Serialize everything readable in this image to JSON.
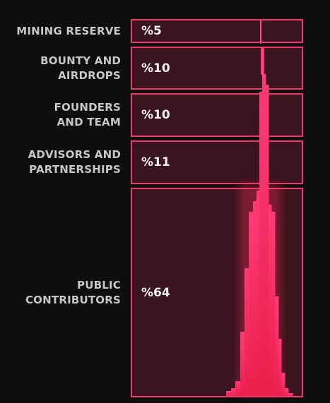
{
  "chart_data": {
    "type": "bar",
    "title": "",
    "categories": [
      [
        "MINING RESERVE"
      ],
      [
        "BOUNTY AND",
        "AIRDROPS"
      ],
      [
        "FOUNDERS",
        "AND TEAM"
      ],
      [
        "ADVISORS AND",
        "PARTNERSHIPS"
      ],
      [
        "PUBLIC",
        "CONTRIBUTORS"
      ]
    ],
    "values": [
      5,
      10,
      10,
      11,
      64
    ],
    "value_labels": [
      "%5",
      "%10",
      "%10",
      "%11",
      "%64"
    ],
    "colors": {
      "background": "#0e0e0e",
      "box_fill": "#3a141e",
      "box_border": "#f0386a",
      "peak_top": "#ff3a78",
      "peak_bottom": "#e8204a",
      "label_text": "#c7c7c7",
      "value_text": "#f2f2f2"
    }
  }
}
